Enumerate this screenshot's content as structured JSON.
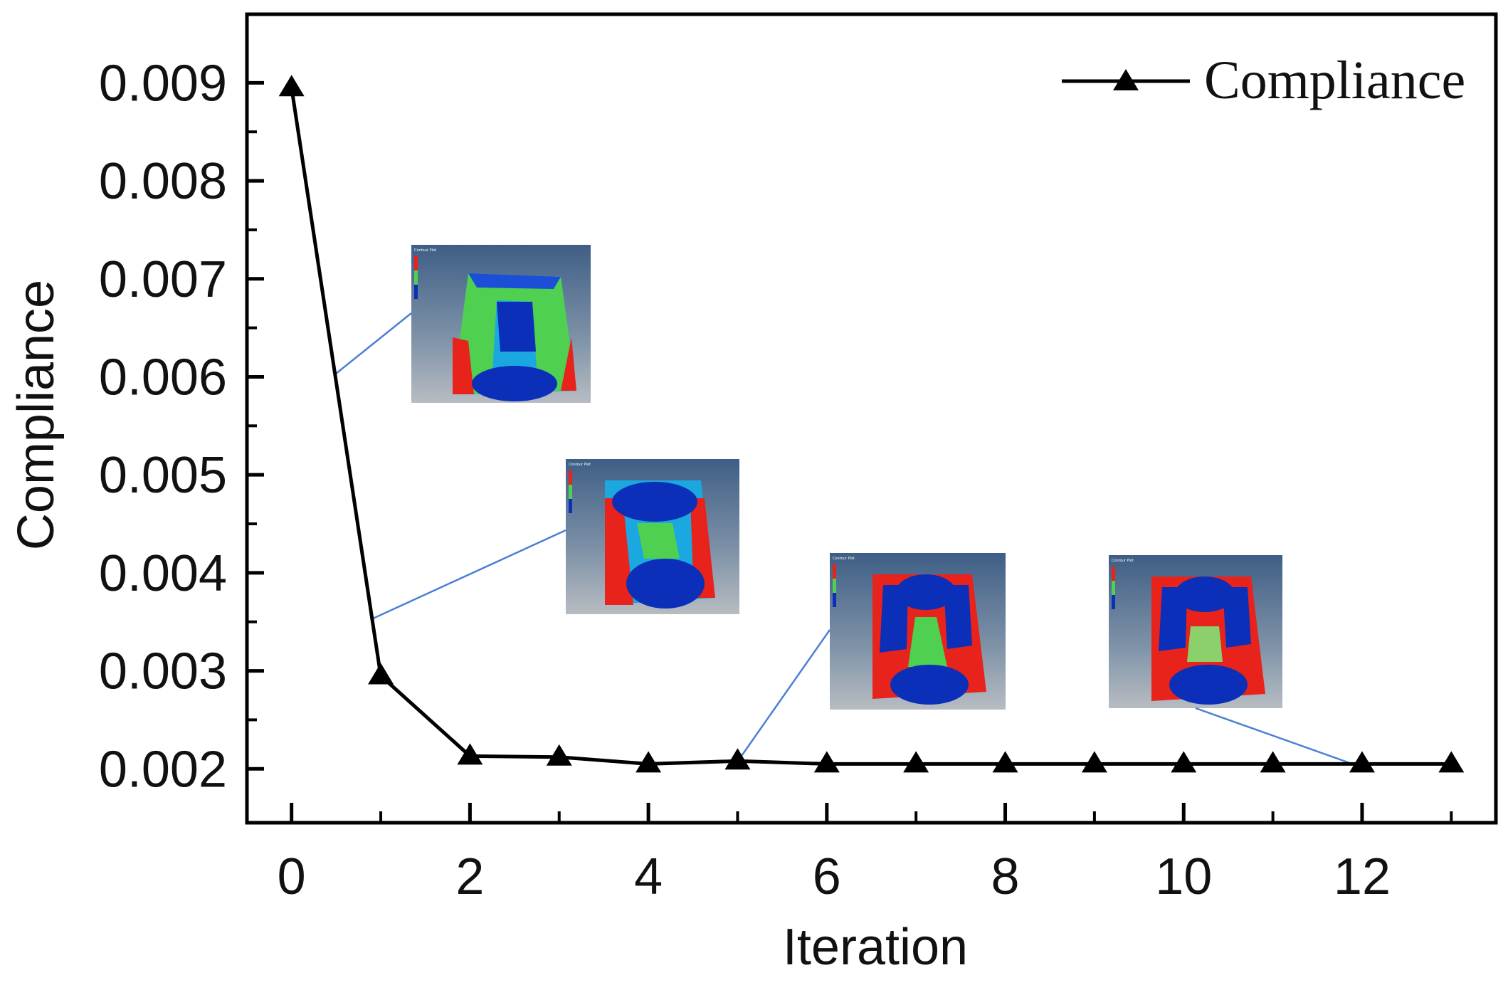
{
  "chart_data": {
    "type": "line",
    "title": "",
    "xlabel": "Iteration",
    "ylabel": "Compliance",
    "xlim": [
      -0.5,
      13.5
    ],
    "ylim": [
      0.00145,
      0.0097
    ],
    "x_ticks": [
      0,
      2,
      4,
      6,
      8,
      10,
      12
    ],
    "x_tick_labels": [
      "0",
      "2",
      "4",
      "6",
      "8",
      "10",
      "12"
    ],
    "x_minor_ticks": [
      1,
      3,
      5,
      7,
      9,
      11,
      13
    ],
    "y_ticks": [
      0.002,
      0.003,
      0.004,
      0.005,
      0.006,
      0.007,
      0.008,
      0.009
    ],
    "y_tick_labels": [
      "0.002",
      "0.003",
      "0.004",
      "0.005",
      "0.006",
      "0.007",
      "0.008",
      "0.009"
    ],
    "y_minor_ticks": [
      0.0025,
      0.0035,
      0.0045,
      0.0055,
      0.0065,
      0.0075,
      0.0085
    ],
    "grid": false,
    "legend_position": "top-right",
    "series": [
      {
        "name": "Compliance",
        "color": "#000000",
        "marker": "triangle",
        "x": [
          0,
          1,
          2,
          3,
          4,
          5,
          6,
          7,
          8,
          9,
          10,
          11,
          12,
          13
        ],
        "values": [
          0.00895,
          0.00295,
          0.00213,
          0.00212,
          0.00205,
          0.00208,
          0.00205,
          0.00205,
          0.00205,
          0.00205,
          0.00205,
          0.00205,
          0.00205,
          0.00205
        ]
      }
    ],
    "annotations": [
      {
        "type": "density-contour-inset",
        "points_to_iteration": 0.5,
        "points_to_value": 0.0059,
        "stage": "early"
      },
      {
        "type": "density-contour-inset",
        "points_to_iteration": 1,
        "points_to_value": 0.0035,
        "stage": "intermediate"
      },
      {
        "type": "density-contour-inset",
        "points_to_iteration": 5,
        "points_to_value": 0.00208,
        "stage": "later"
      },
      {
        "type": "density-contour-inset",
        "points_to_iteration": 12,
        "points_to_value": 0.00205,
        "stage": "final"
      }
    ]
  },
  "colors": {
    "line": "#000000",
    "leader_line": "#4a7fd6",
    "density_high": "#e8231b",
    "density_low": "#0b2fb8",
    "density_mid": "#4fd050",
    "inset_background": "#6b8aa8"
  }
}
